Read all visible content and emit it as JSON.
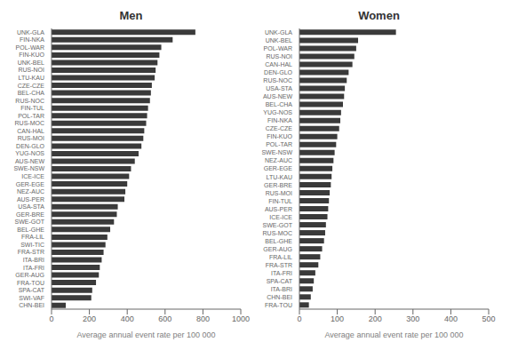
{
  "chart_data": [
    {
      "type": "bar",
      "orientation": "horizontal",
      "title": "Men",
      "xlabel": "Average annual event rate per 100 000",
      "categories": [
        "UNK-GLA",
        "FIN-NKA",
        "POL-WAR",
        "FIN-KUO",
        "UNK-BEL",
        "RUS-NOI",
        "LTU-KAU",
        "CZE-CZE",
        "BEL-CHA",
        "RUS-NOC",
        "FIN-TUL",
        "POL-TAR",
        "RUS-MOC",
        "CAN-HAL",
        "RUS-MOI",
        "DEN-GLO",
        "YUG-NOS",
        "AUS-NEW",
        "SWE-NSW",
        "ICE-ICE",
        "GER-EGE",
        "NEZ-AUC",
        "AUS-PER",
        "USA-STA",
        "GER-BRE",
        "SWE-GOT",
        "BEL-GHE",
        "FRA-LIL",
        "SWI-TIC",
        "FRA-STR",
        "ITA-BRI",
        "ITA-FRI",
        "GER-AUG",
        "FRA-TOU",
        "SPA-CAT",
        "SWI-VAF",
        "CHN-BEI"
      ],
      "values": [
        760,
        640,
        580,
        570,
        560,
        550,
        545,
        530,
        525,
        520,
        510,
        505,
        500,
        490,
        485,
        475,
        460,
        440,
        420,
        410,
        400,
        390,
        385,
        350,
        345,
        330,
        310,
        295,
        285,
        275,
        265,
        255,
        250,
        235,
        215,
        210,
        75
      ],
      "color": "#3a3a3a",
      "xlim": [
        0,
        1000
      ],
      "xticks": [
        0,
        200,
        400,
        600,
        800,
        1000
      ],
      "grid": false
    },
    {
      "type": "bar",
      "orientation": "horizontal",
      "title": "Women",
      "xlabel": "Average annual event rate per 100 000",
      "categories": [
        "UNK-GLA",
        "UNK-BEL",
        "POL-WAR",
        "RUS-NOI",
        "CAN-HAL",
        "DEN-GLO",
        "RUS-NOC",
        "USA-STA",
        "AUS-NEW",
        "BEL-CHA",
        "YUG-NOS",
        "FIN-NKA",
        "CZE-CZE",
        "FIN-KUO",
        "POL-TAR",
        "SWE-NSW",
        "NEZ-AUC",
        "GER-EGE",
        "LTU-KAU",
        "GER-BRE",
        "RUS-MOI",
        "FIN-TUL",
        "AUS-PER",
        "ICE-ICE",
        "SWE-GOT",
        "RUS-MOC",
        "BEL-GHE",
        "GER-AUG",
        "FRA-LIL",
        "FRA-STR",
        "ITA-FRI",
        "SPA-CAT",
        "ITA-BRI",
        "CHN-BEI",
        "FRA-TOU"
      ],
      "values": [
        255,
        155,
        150,
        145,
        140,
        130,
        125,
        120,
        118,
        115,
        110,
        108,
        105,
        100,
        97,
        93,
        90,
        87,
        85,
        83,
        80,
        78,
        76,
        74,
        70,
        68,
        65,
        60,
        55,
        50,
        42,
        38,
        35,
        30,
        25
      ],
      "color": "#3a3a3a",
      "xlim": [
        0,
        500
      ],
      "xticks": [
        0,
        100,
        200,
        300,
        400,
        500
      ],
      "grid": false
    }
  ]
}
